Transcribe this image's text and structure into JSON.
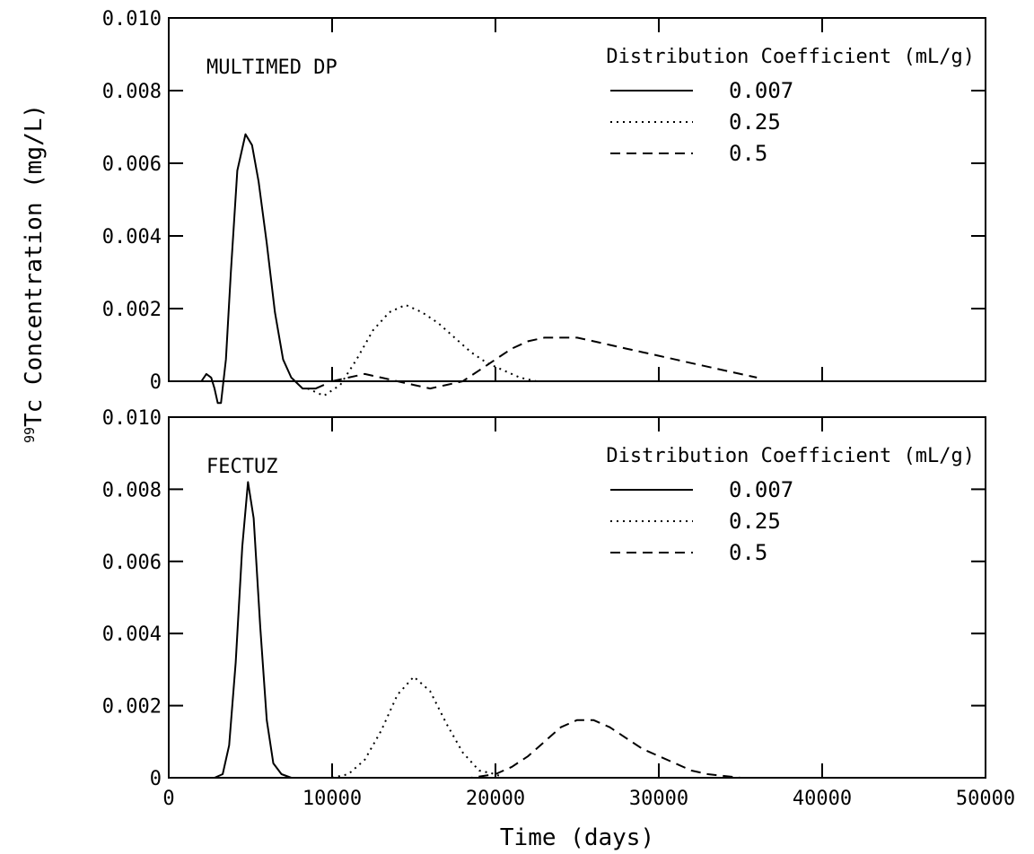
{
  "colors": {
    "background": "#ffffff",
    "ink": "#000000"
  },
  "figure": {
    "ylabel_sup": "99",
    "ylabel_main": "Tc Concentration (mg/L)"
  },
  "chart_data": [
    {
      "type": "line",
      "title": "MULTIMED DP",
      "xlabel": "Time (days)",
      "ylabel": "99Tc Concentration (mg/L)",
      "xlim": [
        0,
        50000
      ],
      "ylim": [
        0,
        0.01
      ],
      "grid": false,
      "legend": {
        "title": "Distribution Coefficient (mL/g)",
        "placement": "top-right"
      },
      "yticks": [
        "0",
        "0.002",
        "0.004",
        "0.006",
        "0.008",
        "0.010"
      ],
      "xticks": [],
      "series": [
        {
          "name": "0.007",
          "style": "solid",
          "points": [
            [
              2000,
              0
            ],
            [
              2300,
              0.0002
            ],
            [
              2600,
              0.0001
            ],
            [
              2800,
              -0.0002
            ],
            [
              3000,
              -0.0006
            ],
            [
              3200,
              -0.0006
            ],
            [
              3500,
              0.0006
            ],
            [
              3800,
              0.003
            ],
            [
              4200,
              0.0058
            ],
            [
              4700,
              0.0068
            ],
            [
              5100,
              0.0065
            ],
            [
              5500,
              0.0055
            ],
            [
              6000,
              0.0038
            ],
            [
              6500,
              0.0019
            ],
            [
              7000,
              0.0006
            ],
            [
              7500,
              0.0001
            ],
            [
              8200,
              -0.0002
            ],
            [
              9000,
              -0.0002
            ],
            [
              9500,
              -0.0001
            ]
          ]
        },
        {
          "name": "0.25",
          "style": "dotted",
          "points": [
            [
              8500,
              -0.0002
            ],
            [
              9500,
              -0.0004
            ],
            [
              10500,
              -0.0001
            ],
            [
              11500,
              0.0006
            ],
            [
              12500,
              0.0014
            ],
            [
              13500,
              0.0019
            ],
            [
              14500,
              0.0021
            ],
            [
              15500,
              0.0019
            ],
            [
              16500,
              0.0016
            ],
            [
              17500,
              0.0012
            ],
            [
              18500,
              0.0008
            ],
            [
              19500,
              0.0005
            ],
            [
              20500,
              0.0003
            ],
            [
              21500,
              0.0001
            ],
            [
              22500,
              0
            ]
          ]
        },
        {
          "name": "0.5",
          "style": "dashed",
          "points": [
            [
              10000,
              0
            ],
            [
              11000,
              0.0001
            ],
            [
              12000,
              0.0002
            ],
            [
              13000,
              0.0001
            ],
            [
              14000,
              0
            ],
            [
              15000,
              -0.0001
            ],
            [
              16000,
              -0.0002
            ],
            [
              17000,
              -0.0001
            ],
            [
              18000,
              0
            ],
            [
              19000,
              0.0003
            ],
            [
              20000,
              0.0006
            ],
            [
              21000,
              0.0009
            ],
            [
              22000,
              0.0011
            ],
            [
              23000,
              0.0012
            ],
            [
              24000,
              0.0012
            ],
            [
              25000,
              0.0012
            ],
            [
              26000,
              0.0011
            ],
            [
              27000,
              0.001
            ],
            [
              28000,
              0.0009
            ],
            [
              29000,
              0.0008
            ],
            [
              30000,
              0.0007
            ],
            [
              31000,
              0.0006
            ],
            [
              32000,
              0.0005
            ],
            [
              33000,
              0.0004
            ],
            [
              34000,
              0.0003
            ],
            [
              35000,
              0.0002
            ],
            [
              36000,
              0.0001
            ]
          ]
        }
      ]
    },
    {
      "type": "line",
      "title": "FECTUZ",
      "xlabel": "Time (days)",
      "ylabel": "99Tc Concentration (mg/L)",
      "xlim": [
        0,
        50000
      ],
      "ylim": [
        0,
        0.01
      ],
      "grid": false,
      "legend": {
        "title": "Distribution Coefficient (mL/g)",
        "placement": "top-right"
      },
      "yticks": [
        "0",
        "0.002",
        "0.004",
        "0.006",
        "0.008",
        "0.010"
      ],
      "xticks": [
        "0",
        "10000",
        "20000",
        "30000",
        "40000",
        "50000"
      ],
      "series": [
        {
          "name": "0.007",
          "style": "solid",
          "points": [
            [
              2800,
              0
            ],
            [
              3300,
              0.0001
            ],
            [
              3700,
              0.0009
            ],
            [
              4100,
              0.0032
            ],
            [
              4500,
              0.0064
            ],
            [
              4850,
              0.0082
            ],
            [
              5200,
              0.0072
            ],
            [
              5600,
              0.0042
            ],
            [
              6000,
              0.0016
            ],
            [
              6400,
              0.0004
            ],
            [
              6900,
              0.0001
            ],
            [
              7500,
              0
            ]
          ]
        },
        {
          "name": "0.25",
          "style": "dotted",
          "points": [
            [
              10000,
              0
            ],
            [
              11000,
              0.0001
            ],
            [
              12000,
              0.0005
            ],
            [
              13000,
              0.0013
            ],
            [
              14000,
              0.0023
            ],
            [
              15000,
              0.0028
            ],
            [
              16000,
              0.0024
            ],
            [
              17000,
              0.0015
            ],
            [
              18000,
              0.0007
            ],
            [
              19000,
              0.0002
            ],
            [
              20000,
              0.0001
            ],
            [
              20500,
              0
            ]
          ]
        },
        {
          "name": "0.5",
          "style": "dashed",
          "points": [
            [
              17000,
              0
            ],
            [
              18500,
              0
            ],
            [
              20000,
              0.0001
            ],
            [
              21000,
              0.0003
            ],
            [
              22000,
              0.0006
            ],
            [
              23000,
              0.001
            ],
            [
              24000,
              0.0014
            ],
            [
              25000,
              0.0016
            ],
            [
              26000,
              0.0016
            ],
            [
              27000,
              0.0014
            ],
            [
              28000,
              0.0011
            ],
            [
              29000,
              0.0008
            ],
            [
              30000,
              0.0006
            ],
            [
              31000,
              0.0004
            ],
            [
              32000,
              0.0002
            ],
            [
              33000,
              0.0001
            ],
            [
              35000,
              0
            ],
            [
              40000,
              0
            ]
          ]
        }
      ]
    }
  ]
}
